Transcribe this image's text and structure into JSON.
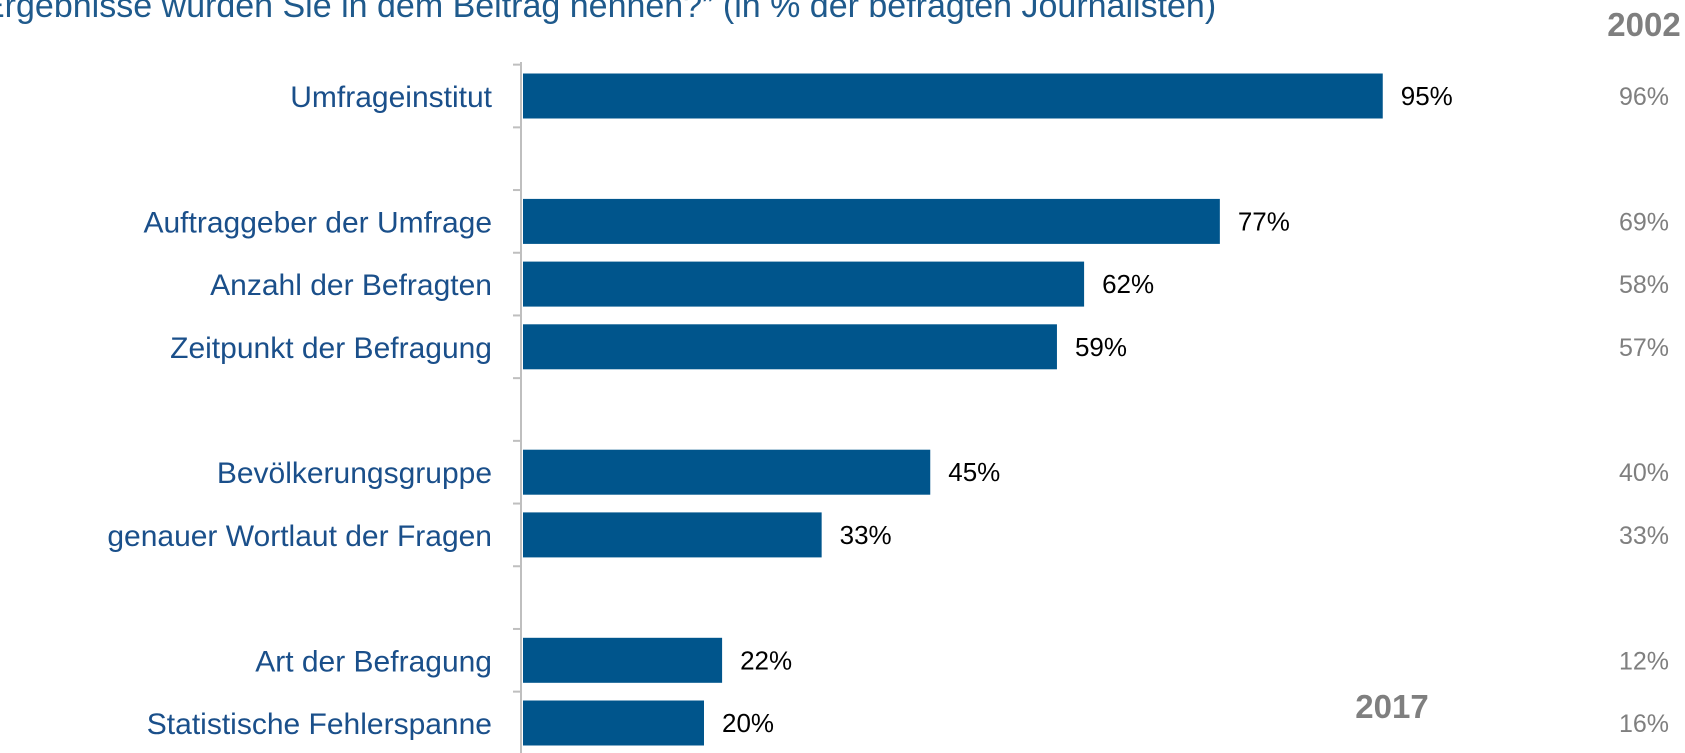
{
  "header": {
    "text": "Ergebnisse würden Sie in dem Beitrag nennen?” (in % der befragten Journalisten)"
  },
  "chart_data": {
    "type": "bar",
    "orientation": "horizontal",
    "categories": [
      "Umfrageinstitut",
      "",
      "Auftraggeber der Umfrage",
      "Anzahl der Befragten",
      "Zeitpunkt der Befragung",
      "",
      "Bevölkerungsgruppe",
      "genauer Wortlaut der Fragen",
      "",
      "Art der Befragung",
      "Statistische Fehlerspanne"
    ],
    "series": [
      {
        "name": "2017",
        "values": [
          95,
          null,
          77,
          62,
          59,
          null,
          45,
          33,
          null,
          22,
          20
        ],
        "labels": [
          "95%",
          "",
          "77%",
          "62%",
          "59%",
          "",
          "45%",
          "33%",
          "",
          "22%",
          "20%"
        ]
      },
      {
        "name": "2002",
        "values": [
          96,
          null,
          69,
          58,
          57,
          null,
          40,
          33,
          null,
          12,
          16
        ],
        "labels": [
          "96%",
          "",
          "69%",
          "58%",
          "57%",
          "",
          "40%",
          "33%",
          "",
          "12%",
          "16%"
        ]
      }
    ],
    "xlim": [
      0,
      100
    ],
    "grid": false,
    "bar_color": "#00558c",
    "comparison_label_color": "#7f7f7f"
  }
}
